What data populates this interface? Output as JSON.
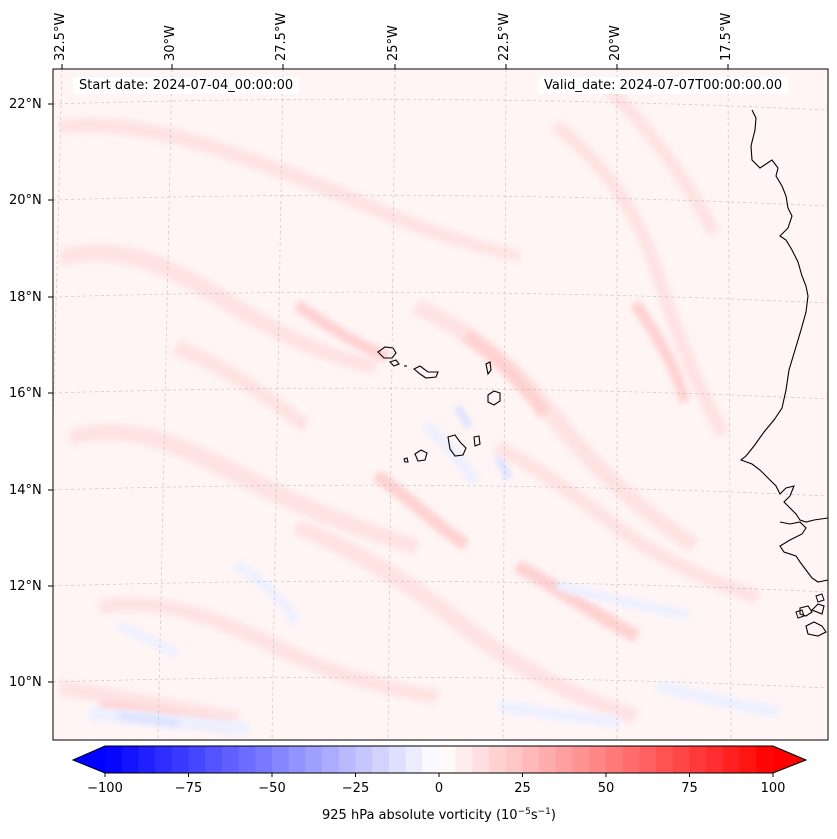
{
  "map": {
    "title_start": "Start date: 2024-07-04_00:00:00",
    "title_valid": "Valid_date: 2024-07-07T00:00:00.00",
    "lon_labels": [
      "32.5°W",
      "30°W",
      "27.5°W",
      "25°W",
      "22.5°W",
      "20°W",
      "17.5°W"
    ],
    "lat_labels": [
      "22°N",
      "20°N",
      "18°N",
      "16°N",
      "14°N",
      "12°N",
      "10°N"
    ],
    "field_colors": {
      "background": "#fff5f5",
      "light_pink": "#ffe3e3",
      "medium_pink": "#ffd2d2",
      "light_blue": "#eef0ff",
      "medium_blue": "#dde2ff",
      "coast": "#000000"
    }
  },
  "colorbar": {
    "title": "925 hPa absolute vorticity (10",
    "title_exp1": "−5",
    "title_mid": "s",
    "title_exp2": "−1",
    "title_end": ")",
    "tick_labels": [
      "−100",
      "−75",
      "−50",
      "−25",
      "0",
      "25",
      "50",
      "75",
      "100"
    ],
    "range": [
      -100,
      100
    ],
    "step": 5,
    "low_color": "#0000ff",
    "high_color": "#ff0000",
    "mid_color": "#ffffff"
  }
}
